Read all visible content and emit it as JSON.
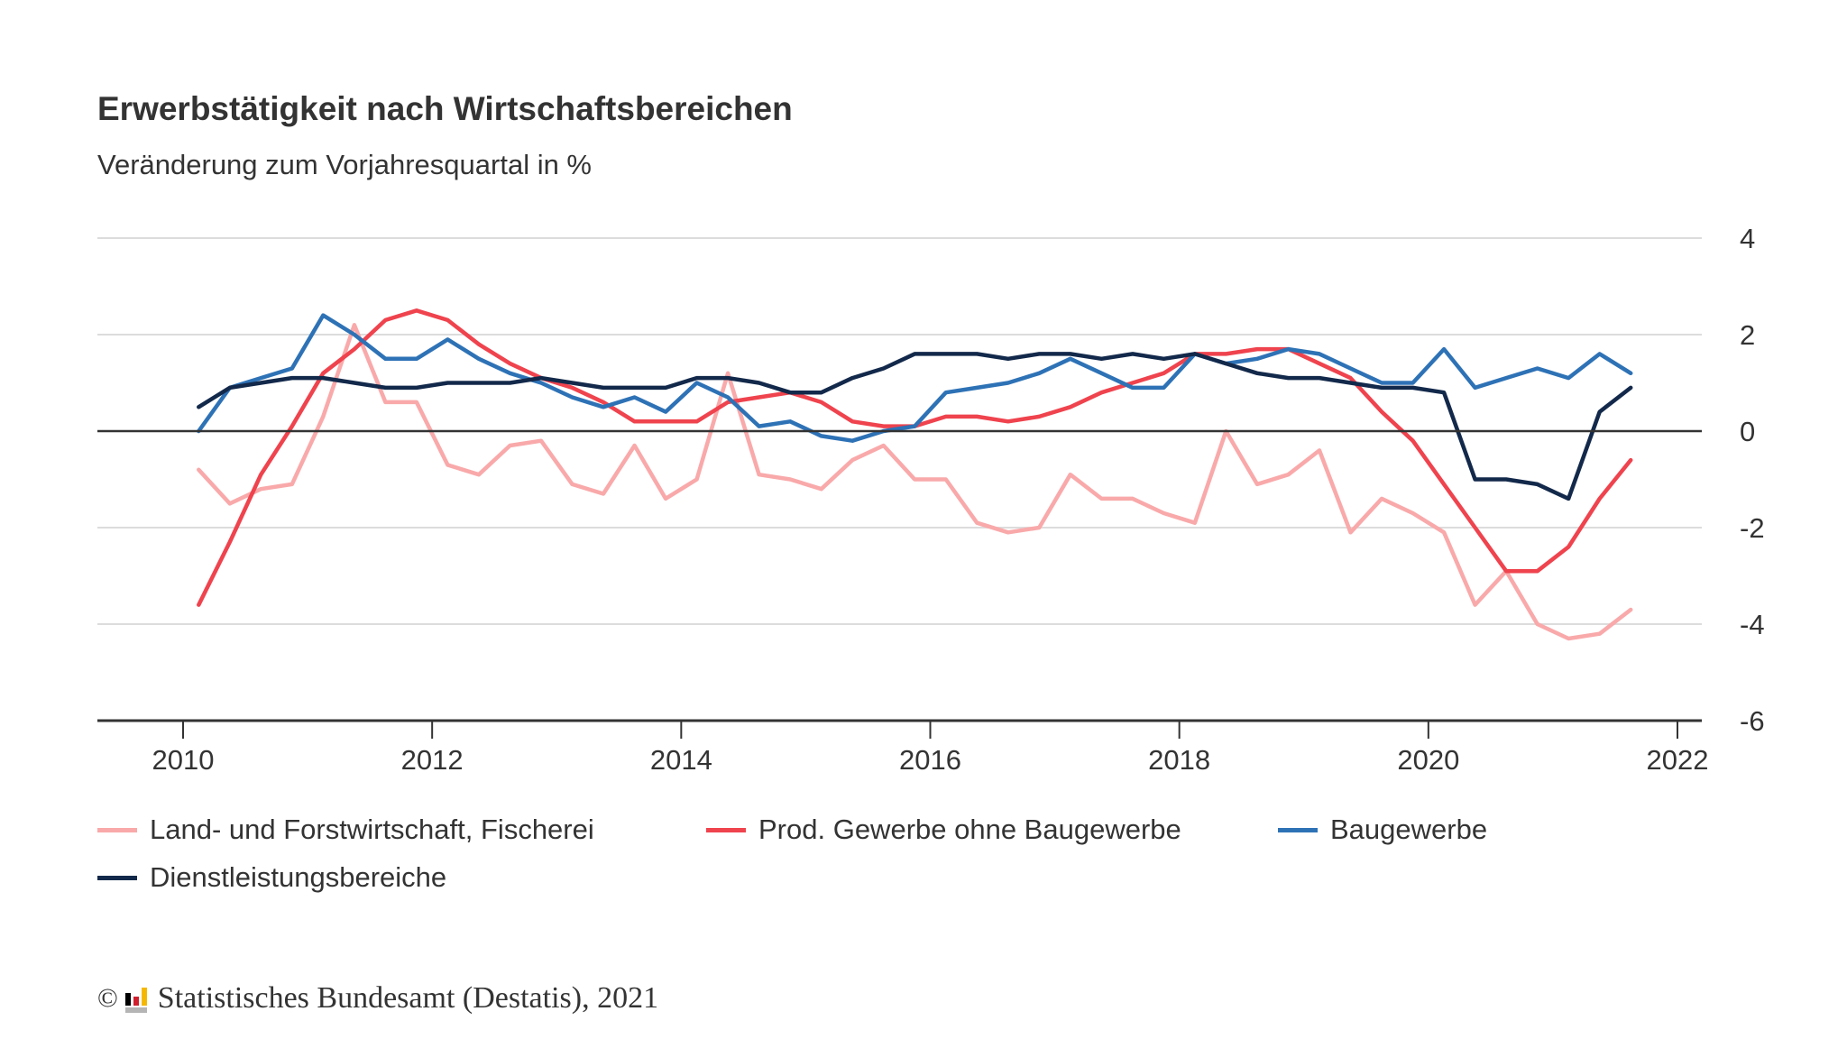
{
  "chart_data": {
    "type": "line",
    "title": "Erwerbstätigkeit nach Wirtschaftsbereichen",
    "subtitle": "Veränderung zum Vorjahresquartal in %",
    "xlabel": "",
    "ylabel": "",
    "xlim": [
      2009.6,
      2022.2
    ],
    "ylim": [
      -6,
      4
    ],
    "x_ticks": [
      "2010",
      "2012",
      "2014",
      "2016",
      "2018",
      "2020",
      "2022"
    ],
    "y_ticks": [
      "4",
      "2",
      "0",
      "-2",
      "-4",
      "-6"
    ],
    "y_axis_side": "right",
    "grid": true,
    "legend_position": "bottom",
    "x": [
      "2010Q1",
      "2010Q2",
      "2010Q3",
      "2010Q4",
      "2011Q1",
      "2011Q2",
      "2011Q3",
      "2011Q4",
      "2012Q1",
      "2012Q2",
      "2012Q3",
      "2012Q4",
      "2013Q1",
      "2013Q2",
      "2013Q3",
      "2013Q4",
      "2014Q1",
      "2014Q2",
      "2014Q3",
      "2014Q4",
      "2015Q1",
      "2015Q2",
      "2015Q3",
      "2015Q4",
      "2016Q1",
      "2016Q2",
      "2016Q3",
      "2016Q4",
      "2017Q1",
      "2017Q2",
      "2017Q3",
      "2017Q4",
      "2018Q1",
      "2018Q2",
      "2018Q3",
      "2018Q4",
      "2019Q1",
      "2019Q2",
      "2019Q3",
      "2019Q4",
      "2020Q1",
      "2020Q2",
      "2020Q3",
      "2020Q4",
      "2021Q1",
      "2021Q2",
      "2021Q3"
    ],
    "series": [
      {
        "name": "Land- und Forstwirtschaft, Fischerei",
        "color": "#f9a9aa",
        "values": [
          -0.8,
          -1.5,
          -1.2,
          -1.1,
          0.3,
          2.2,
          0.6,
          0.6,
          -0.7,
          -0.9,
          -0.3,
          -0.2,
          -1.1,
          -1.3,
          -0.3,
          -1.4,
          -1.0,
          1.2,
          -0.9,
          -1.0,
          -1.2,
          -0.6,
          -0.3,
          -1.0,
          -1.0,
          -1.9,
          -2.1,
          -2.0,
          -0.9,
          -1.4,
          -1.4,
          -1.7,
          -1.9,
          0.0,
          -1.1,
          -0.9,
          -0.4,
          -2.1,
          -1.4,
          -1.7,
          -2.1,
          -3.6,
          -2.9,
          -4.0,
          -4.3,
          -4.2,
          -3.7
        ]
      },
      {
        "name": "Prod. Gewerbe ohne Baugewerbe",
        "color": "#ef434e",
        "values": [
          -3.6,
          -2.3,
          -0.9,
          0.1,
          1.2,
          1.7,
          2.3,
          2.5,
          2.3,
          1.8,
          1.4,
          1.1,
          0.9,
          0.6,
          0.2,
          0.2,
          0.2,
          0.6,
          0.7,
          0.8,
          0.6,
          0.2,
          0.1,
          0.1,
          0.3,
          0.3,
          0.2,
          0.3,
          0.5,
          0.8,
          1.0,
          1.2,
          1.6,
          1.6,
          1.7,
          1.7,
          1.4,
          1.1,
          0.4,
          -0.2,
          -1.1,
          -2.0,
          -2.9,
          -2.9,
          -2.4,
          -1.4,
          -0.6
        ]
      },
      {
        "name": "Baugewerbe",
        "color": "#2e72b6",
        "values": [
          0.0,
          0.9,
          1.1,
          1.3,
          2.4,
          2.0,
          1.5,
          1.5,
          1.9,
          1.5,
          1.2,
          1.0,
          0.7,
          0.5,
          0.7,
          0.4,
          1.0,
          0.7,
          0.1,
          0.2,
          -0.1,
          -0.2,
          0.0,
          0.1,
          0.8,
          0.9,
          1.0,
          1.2,
          1.5,
          1.2,
          0.9,
          0.9,
          1.6,
          1.4,
          1.5,
          1.7,
          1.6,
          1.3,
          1.0,
          1.0,
          1.7,
          0.9,
          1.1,
          1.3,
          1.1,
          1.6,
          1.2
        ]
      },
      {
        "name": "Dienstleistungsbereiche",
        "color": "#13294b",
        "values": [
          0.5,
          0.9,
          1.0,
          1.1,
          1.1,
          1.0,
          0.9,
          0.9,
          1.0,
          1.0,
          1.0,
          1.1,
          1.0,
          0.9,
          0.9,
          0.9,
          1.1,
          1.1,
          1.0,
          0.8,
          0.8,
          1.1,
          1.3,
          1.6,
          1.6,
          1.6,
          1.5,
          1.6,
          1.6,
          1.5,
          1.6,
          1.5,
          1.6,
          1.4,
          1.2,
          1.1,
          1.1,
          1.0,
          0.9,
          0.9,
          0.8,
          -1.0,
          -1.0,
          -1.1,
          -1.4,
          0.4,
          0.9
        ]
      }
    ]
  },
  "footer": {
    "copyright": "©",
    "source": "Statistisches Bundesamt (Destatis), 2021",
    "logo_colors": [
      "#000000",
      "#d0202e",
      "#f5b800",
      "#b5b5b5"
    ]
  }
}
